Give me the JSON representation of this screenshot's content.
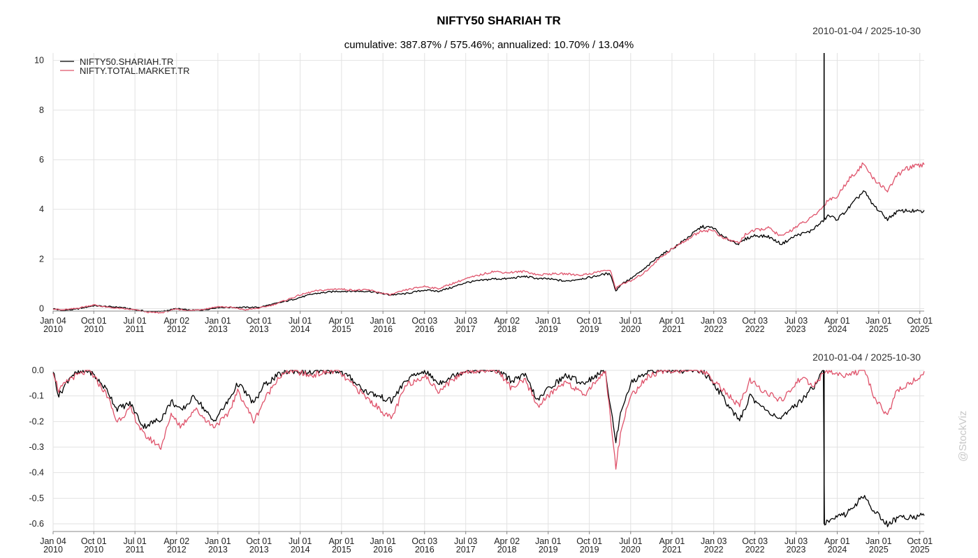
{
  "chart_data": [
    {
      "type": "line",
      "title": "NIFTY50 SHARIAH TR",
      "subtitle": "cumulative: 387.87% / 575.46%; annualized: 10.70% / 13.04%",
      "date_range": "2010-01-04 / 2025-10-30",
      "ylim": [
        -0.1,
        10.3
      ],
      "y_ticks": [
        0,
        2,
        4,
        6,
        8,
        10
      ],
      "x_ticks": [
        {
          "date": "2010-01-04",
          "line1": "Jan 04",
          "line2": "2010"
        },
        {
          "date": "2010-10-01",
          "line1": "Oct 01",
          "line2": "2010"
        },
        {
          "date": "2011-07-01",
          "line1": "Jul 01",
          "line2": "2011"
        },
        {
          "date": "2012-04-02",
          "line1": "Apr 02",
          "line2": "2012"
        },
        {
          "date": "2013-01-01",
          "line1": "Jan 01",
          "line2": "2013"
        },
        {
          "date": "2013-10-01",
          "line1": "Oct 01",
          "line2": "2013"
        },
        {
          "date": "2014-07-01",
          "line1": "Jul 01",
          "line2": "2014"
        },
        {
          "date": "2015-04-01",
          "line1": "Apr 01",
          "line2": "2015"
        },
        {
          "date": "2016-01-01",
          "line1": "Jan 01",
          "line2": "2016"
        },
        {
          "date": "2016-10-03",
          "line1": "Oct 03",
          "line2": "2016"
        },
        {
          "date": "2017-07-03",
          "line1": "Jul 03",
          "line2": "2017"
        },
        {
          "date": "2018-04-02",
          "line1": "Apr 02",
          "line2": "2018"
        },
        {
          "date": "2019-01-01",
          "line1": "Jan 01",
          "line2": "2019"
        },
        {
          "date": "2019-10-01",
          "line1": "Oct 01",
          "line2": "2019"
        },
        {
          "date": "2020-07-01",
          "line1": "Jul 01",
          "line2": "2020"
        },
        {
          "date": "2021-04-01",
          "line1": "Apr 01",
          "line2": "2021"
        },
        {
          "date": "2022-01-03",
          "line1": "Jan 03",
          "line2": "2022"
        },
        {
          "date": "2022-10-03",
          "line1": "Oct 03",
          "line2": "2022"
        },
        {
          "date": "2023-07-03",
          "line1": "Jul 03",
          "line2": "2023"
        },
        {
          "date": "2024-04-01",
          "line1": "Apr 01",
          "line2": "2024"
        },
        {
          "date": "2025-01-01",
          "line1": "Jan 01",
          "line2": "2025"
        },
        {
          "date": "2025-10-01",
          "line1": "Oct 01",
          "line2": "2025"
        }
      ],
      "series": [
        {
          "name": "NIFTY50.SHARIAH.TR",
          "color": "#000000",
          "x": [
            "2010-01-04",
            "2010-03-01",
            "2010-06-01",
            "2010-10-01",
            "2011-01-01",
            "2011-04-01",
            "2011-07-01",
            "2011-10-01",
            "2011-12-20",
            "2012-04-02",
            "2012-07-01",
            "2012-10-01",
            "2013-01-01",
            "2013-04-01",
            "2013-07-01",
            "2013-10-01",
            "2014-01-01",
            "2014-04-01",
            "2014-07-01",
            "2014-10-01",
            "2015-03-01",
            "2015-06-01",
            "2015-10-01",
            "2016-02-15",
            "2016-06-01",
            "2016-10-03",
            "2017-01-01",
            "2017-04-01",
            "2017-07-03",
            "2018-01-01",
            "2018-04-02",
            "2018-08-01",
            "2018-11-01",
            "2019-01-01",
            "2019-05-01",
            "2019-08-01",
            "2019-10-01",
            "2020-01-15",
            "2020-02-20",
            "2020-03-24",
            "2020-05-01",
            "2020-07-01",
            "2020-10-01",
            "2021-01-01",
            "2021-04-01",
            "2021-07-01",
            "2021-10-15",
            "2022-01-03",
            "2022-03-01",
            "2022-06-20",
            "2022-08-01",
            "2022-10-03",
            "2023-01-01",
            "2023-03-28",
            "2023-07-03",
            "2023-10-01",
            "2023-12-15",
            "2024-02-01",
            "2024-04-01",
            "2024-06-01",
            "2024-09-25",
            "2024-11-15",
            "2025-02-28",
            "2025-05-01",
            "2025-07-01",
            "2025-10-30"
          ],
          "values": [
            0.0,
            -0.08,
            -0.03,
            0.12,
            0.08,
            0.05,
            -0.05,
            -0.12,
            -0.12,
            0.0,
            -0.07,
            -0.05,
            0.05,
            0.05,
            0.05,
            0.05,
            0.18,
            0.3,
            0.45,
            0.6,
            0.7,
            0.7,
            0.7,
            0.55,
            0.6,
            0.75,
            0.7,
            0.85,
            1.05,
            1.2,
            1.2,
            1.3,
            1.2,
            1.2,
            1.1,
            1.2,
            1.25,
            1.4,
            1.38,
            0.7,
            1.0,
            1.2,
            1.6,
            2.1,
            2.4,
            2.8,
            3.3,
            3.25,
            2.9,
            2.6,
            2.8,
            2.95,
            2.9,
            2.6,
            2.95,
            3.1,
            3.45,
            3.75,
            3.6,
            3.95,
            4.75,
            4.25,
            3.6,
            3.9,
            3.95,
            3.9
          ]
        },
        {
          "name": "NIFTY.TOTAL.MARKET.TR",
          "color": "#df536b",
          "x": [
            "2010-01-04",
            "2010-03-01",
            "2010-06-01",
            "2010-10-01",
            "2011-01-01",
            "2011-04-01",
            "2011-07-01",
            "2011-10-01",
            "2011-12-20",
            "2012-04-02",
            "2012-07-01",
            "2012-10-01",
            "2013-01-01",
            "2013-04-01",
            "2013-07-01",
            "2013-10-01",
            "2014-01-01",
            "2014-04-01",
            "2014-07-01",
            "2014-10-01",
            "2015-03-01",
            "2015-06-01",
            "2015-10-01",
            "2016-02-15",
            "2016-06-01",
            "2016-10-03",
            "2017-01-01",
            "2017-04-01",
            "2017-07-03",
            "2018-01-01",
            "2018-04-02",
            "2018-08-01",
            "2018-11-01",
            "2019-01-01",
            "2019-05-01",
            "2019-08-01",
            "2019-10-01",
            "2020-01-15",
            "2020-02-20",
            "2020-03-24",
            "2020-05-01",
            "2020-07-01",
            "2020-10-01",
            "2021-01-01",
            "2021-04-01",
            "2021-07-01",
            "2021-10-15",
            "2022-01-03",
            "2022-03-01",
            "2022-06-20",
            "2022-08-01",
            "2022-10-03",
            "2023-01-01",
            "2023-03-28",
            "2023-07-03",
            "2023-10-01",
            "2023-12-15",
            "2024-02-01",
            "2024-04-01",
            "2024-06-01",
            "2024-09-25",
            "2024-11-15",
            "2025-02-28",
            "2025-05-01",
            "2025-07-01",
            "2025-10-30"
          ],
          "values": [
            0.0,
            -0.06,
            0.0,
            0.15,
            0.05,
            0.0,
            -0.05,
            -0.15,
            -0.17,
            -0.02,
            -0.08,
            -0.02,
            0.08,
            0.05,
            -0.05,
            0.02,
            0.15,
            0.35,
            0.55,
            0.7,
            0.8,
            0.75,
            0.75,
            0.55,
            0.75,
            0.9,
            0.8,
            1.0,
            1.2,
            1.5,
            1.45,
            1.5,
            1.35,
            1.4,
            1.4,
            1.35,
            1.4,
            1.55,
            1.5,
            0.8,
            1.0,
            1.1,
            1.45,
            2.0,
            2.4,
            2.75,
            3.15,
            3.15,
            2.85,
            2.65,
            3.0,
            3.15,
            3.25,
            2.9,
            3.3,
            3.6,
            4.0,
            4.4,
            4.5,
            5.1,
            5.85,
            5.3,
            4.75,
            5.35,
            5.65,
            5.8
          ]
        }
      ]
    },
    {
      "type": "line",
      "date_range": "2010-01-04 / 2025-10-30",
      "ylim": [
        -0.63,
        0.0
      ],
      "y_ticks": [
        0.0,
        -0.1,
        -0.2,
        -0.3,
        -0.4,
        -0.5,
        -0.6
      ],
      "y_tick_labels": [
        "0.0",
        "-0.1",
        "-0.2",
        "-0.3",
        "-0.4",
        "-0.5",
        "-0.6"
      ],
      "series": [
        {
          "name": "NIFTY50.SHARIAH.TR",
          "color": "#000000",
          "x": [
            "2010-01-04",
            "2010-02-10",
            "2010-05-01",
            "2010-09-01",
            "2011-01-01",
            "2011-03-01",
            "2011-06-01",
            "2011-08-25",
            "2011-12-20",
            "2012-03-01",
            "2012-05-01",
            "2012-08-01",
            "2012-12-01",
            "2013-03-01",
            "2013-05-15",
            "2013-08-28",
            "2013-11-01",
            "2014-02-01",
            "2014-05-01",
            "2014-09-01",
            "2015-03-01",
            "2015-06-01",
            "2015-09-01",
            "2016-02-25",
            "2016-06-01",
            "2016-10-01",
            "2017-01-01",
            "2017-07-01",
            "2018-02-01",
            "2018-05-01",
            "2018-08-01",
            "2018-10-25",
            "2019-01-01",
            "2019-05-01",
            "2019-08-20",
            "2020-01-15",
            "2020-03-24",
            "2020-05-01",
            "2020-07-01",
            "2020-11-01",
            "2021-03-01",
            "2021-07-01",
            "2021-10-15",
            "2022-01-03",
            "2022-06-20",
            "2022-09-01",
            "2022-12-01",
            "2023-03-28",
            "2023-08-01",
            "2023-11-01",
            "2023-12-20",
            "2024-01-05",
            "2024-01-06",
            "2024-03-01",
            "2024-06-01",
            "2024-09-25",
            "2024-11-30",
            "2025-02-28",
            "2025-05-01",
            "2025-08-01",
            "2025-10-30"
          ],
          "values": [
            0.0,
            -0.1,
            -0.02,
            0.0,
            -0.08,
            -0.15,
            -0.13,
            -0.22,
            -0.19,
            -0.12,
            -0.16,
            -0.1,
            -0.2,
            -0.13,
            -0.05,
            -0.13,
            -0.06,
            -0.02,
            0.0,
            -0.01,
            0.0,
            -0.03,
            -0.08,
            -0.12,
            -0.04,
            0.0,
            -0.05,
            0.0,
            0.0,
            -0.04,
            -0.02,
            -0.12,
            -0.07,
            -0.02,
            -0.05,
            0.0,
            -0.28,
            -0.15,
            -0.05,
            0.0,
            0.0,
            0.0,
            0.0,
            -0.05,
            -0.2,
            -0.1,
            -0.15,
            -0.19,
            -0.12,
            -0.06,
            0.0,
            0.0,
            -0.6,
            -0.58,
            -0.56,
            -0.49,
            -0.55,
            -0.6,
            -0.58,
            -0.57,
            -0.57
          ]
        },
        {
          "name": "NIFTY.TOTAL.MARKET.TR",
          "color": "#df536b",
          "x": [
            "2010-01-04",
            "2010-02-10",
            "2010-05-01",
            "2010-09-01",
            "2011-01-01",
            "2011-03-01",
            "2011-06-01",
            "2011-08-25",
            "2011-12-20",
            "2012-03-01",
            "2012-05-01",
            "2012-08-01",
            "2012-12-01",
            "2013-03-01",
            "2013-05-15",
            "2013-08-28",
            "2013-11-01",
            "2014-02-01",
            "2014-05-01",
            "2014-09-01",
            "2015-03-01",
            "2015-06-01",
            "2015-09-01",
            "2016-02-25",
            "2016-06-01",
            "2016-10-01",
            "2017-01-01",
            "2017-07-01",
            "2018-02-01",
            "2018-05-01",
            "2018-08-01",
            "2018-10-25",
            "2019-01-01",
            "2019-05-01",
            "2019-08-20",
            "2020-01-15",
            "2020-03-24",
            "2020-05-01",
            "2020-07-01",
            "2020-11-01",
            "2021-03-01",
            "2021-07-01",
            "2021-10-15",
            "2022-01-03",
            "2022-06-20",
            "2022-09-01",
            "2022-12-01",
            "2023-03-28",
            "2023-08-01",
            "2023-11-01",
            "2024-01-15",
            "2024-05-01",
            "2024-09-25",
            "2024-11-30",
            "2025-02-28",
            "2025-05-01",
            "2025-08-01",
            "2025-10-30"
          ],
          "values": [
            0.0,
            -0.08,
            -0.03,
            0.0,
            -0.1,
            -0.2,
            -0.15,
            -0.25,
            -0.3,
            -0.17,
            -0.22,
            -0.15,
            -0.22,
            -0.18,
            -0.08,
            -0.2,
            -0.12,
            -0.03,
            0.0,
            -0.02,
            0.0,
            -0.05,
            -0.1,
            -0.19,
            -0.06,
            -0.02,
            -0.08,
            0.0,
            0.0,
            -0.07,
            -0.04,
            -0.14,
            -0.1,
            -0.04,
            -0.1,
            0.0,
            -0.38,
            -0.22,
            -0.1,
            -0.02,
            0.0,
            0.0,
            0.0,
            -0.04,
            -0.14,
            -0.04,
            -0.08,
            -0.12,
            -0.03,
            -0.06,
            0.0,
            -0.02,
            0.0,
            -0.1,
            -0.18,
            -0.08,
            -0.05,
            -0.01
          ]
        }
      ]
    }
  ],
  "watermark": "@StockViz"
}
